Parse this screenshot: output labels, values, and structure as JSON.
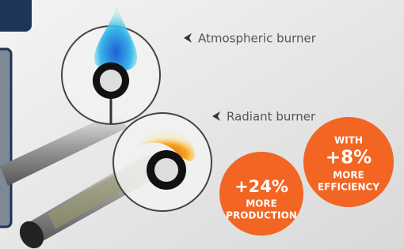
{
  "labels": [
    {
      "text": "Atmospheric burner"
    },
    {
      "text": "Radiant burner"
    }
  ],
  "badges": [
    {
      "value": "+24%",
      "line1": "MORE",
      "line2": "PRODUCTION"
    },
    {
      "top": "WITH",
      "value": "+8%",
      "line1": "MORE",
      "line2": "EFFICIENCY"
    }
  ]
}
